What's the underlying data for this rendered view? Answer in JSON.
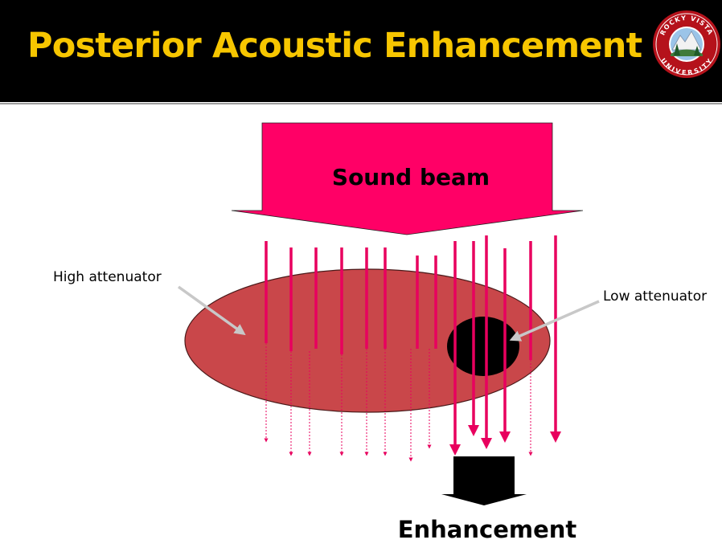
{
  "slide": {
    "title": "Posterior Acoustic Enhancement"
  },
  "logo": {
    "top_text": "ROCKY VISTA",
    "bottom_text": "UNIVERSITY",
    "icon": "rocky-vista-university-seal"
  },
  "diagram": {
    "beam_label": "Sound beam",
    "high_label": "High attenuator",
    "low_label": "Low attenuator",
    "result_label": "Enhancement",
    "colors": {
      "beam": "#ff0066",
      "ray": "#e8005e",
      "ellipse_fill": "#c9474a",
      "ellipse_stroke": "#4a1a1a",
      "low_attenuator": "#000000",
      "arrow": "#c8c8c8",
      "result_arrow": "#000000"
    }
  }
}
